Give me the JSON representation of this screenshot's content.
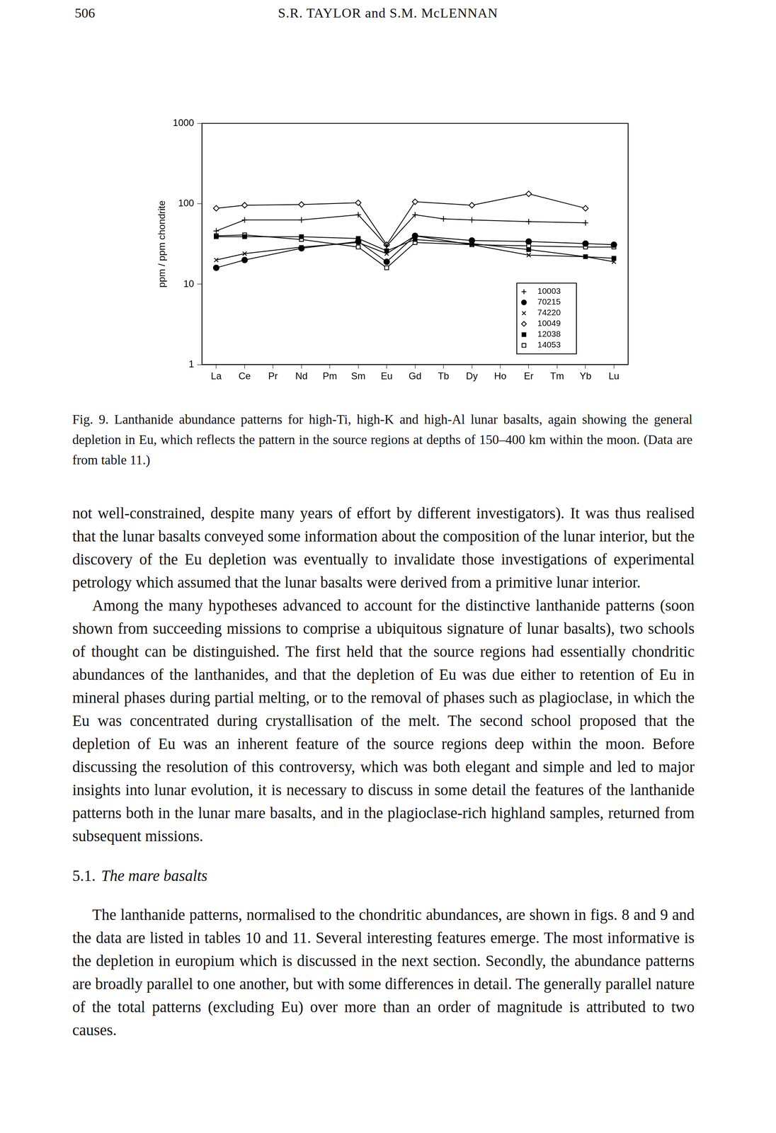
{
  "header": {
    "page_number": "506",
    "running_head": "S.R. TAYLOR and S.M. McLENNAN"
  },
  "chart_data": {
    "type": "line",
    "y_label": "ppm / ppm chondrite",
    "categories": [
      "La",
      "Ce",
      "Pr",
      "Nd",
      "Pm",
      "Sm",
      "Eu",
      "Gd",
      "Tb",
      "Dy",
      "Ho",
      "Er",
      "Tm",
      "Yb",
      "Lu"
    ],
    "log": "y",
    "ylim": [
      1,
      1000
    ],
    "yticks": [
      1,
      10,
      100,
      1000
    ],
    "grid": false,
    "legend": "lower right",
    "series": [
      {
        "name": "10003",
        "color": "#000000",
        "marker": "plus",
        "values": [
          46,
          63,
          null,
          63,
          null,
          73,
          30,
          73,
          65,
          63,
          null,
          60,
          null,
          58,
          null
        ]
      },
      {
        "name": "70215",
        "color": "#000000",
        "marker": "circle",
        "values": [
          16,
          20,
          null,
          28,
          null,
          34,
          19,
          40,
          null,
          35,
          null,
          34,
          null,
          32,
          31
        ]
      },
      {
        "name": "74220",
        "color": "#000000",
        "marker": "x",
        "values": [
          20,
          24,
          null,
          29,
          null,
          33,
          24,
          40,
          null,
          31,
          null,
          23,
          null,
          22,
          19
        ]
      },
      {
        "name": "10049",
        "color": "#000000",
        "marker": "diamond_open",
        "values": [
          88,
          96,
          null,
          98,
          null,
          103,
          31,
          106,
          null,
          96,
          null,
          133,
          null,
          88,
          null
        ]
      },
      {
        "name": "12038",
        "color": "#000000",
        "marker": "square",
        "values": [
          39,
          39,
          null,
          39,
          null,
          37,
          26,
          36,
          null,
          32,
          null,
          27,
          null,
          22,
          21
        ]
      },
      {
        "name": "14053",
        "color": "#000000",
        "marker": "square_open",
        "values": [
          40,
          41,
          null,
          36,
          null,
          29,
          16,
          33,
          null,
          31,
          null,
          30,
          null,
          29,
          29
        ]
      }
    ]
  },
  "caption": {
    "label": "Fig. 9.",
    "text": "Lanthanide abundance patterns for high-Ti, high-K and high-Al lunar basalts, again showing the general depletion in Eu, which reflects the pattern in the source regions at depths of 150–400 km within the moon. (Data are from table 11.)"
  },
  "body": [
    {
      "kind": "paragraph",
      "indent": false,
      "text": "not well-constrained, despite many years of effort by different investigators). It was thus realised that the lunar basalts conveyed some information about the composition of the lunar interior, but the discovery of the Eu depletion was eventually to invalidate those investigations of experimental petrology which assumed that the lunar basalts were derived from a primitive lunar interior."
    },
    {
      "kind": "paragraph",
      "indent": true,
      "text": "Among the many hypotheses advanced to account for the distinctive lanthanide patterns (soon shown from succeeding missions to comprise a ubiquitous signature of lunar basalts), two schools of thought can be distinguished. The first held that the source regions had essentially chondritic abundances of the lanthanides, and that the depletion of Eu was due either to retention of Eu in mineral phases during partial melting, or to the removal of phases such as plagioclase, in which the Eu was concentrated during crystallisation of the melt. The second school proposed that the depletion of Eu was an inherent feature of the source regions deep within the moon. Before discussing the resolution of this controversy, which was both elegant and simple and led to major insights into lunar evolution, it is necessary to discuss in some detail the features of the lanthanide patterns both in the lunar mare basalts, and in the plagioclase-rich highland samples, returned from subsequent missions."
    },
    {
      "kind": "heading",
      "number": "5.1.",
      "title": "The mare basalts"
    },
    {
      "kind": "paragraph",
      "indent": true,
      "text": "The lanthanide patterns, normalised to the chondritic abundances, are shown in figs. 8 and 9 and the data are listed in tables 10 and 11. Several interesting features emerge. The most informative is the depletion in europium which is discussed in the next section. Secondly, the abundance patterns are broadly parallel to one another, but with some differences in detail. The generally parallel nature of the total patterns (excluding Eu) over more than an order of magnitude is attributed to two causes."
    }
  ]
}
